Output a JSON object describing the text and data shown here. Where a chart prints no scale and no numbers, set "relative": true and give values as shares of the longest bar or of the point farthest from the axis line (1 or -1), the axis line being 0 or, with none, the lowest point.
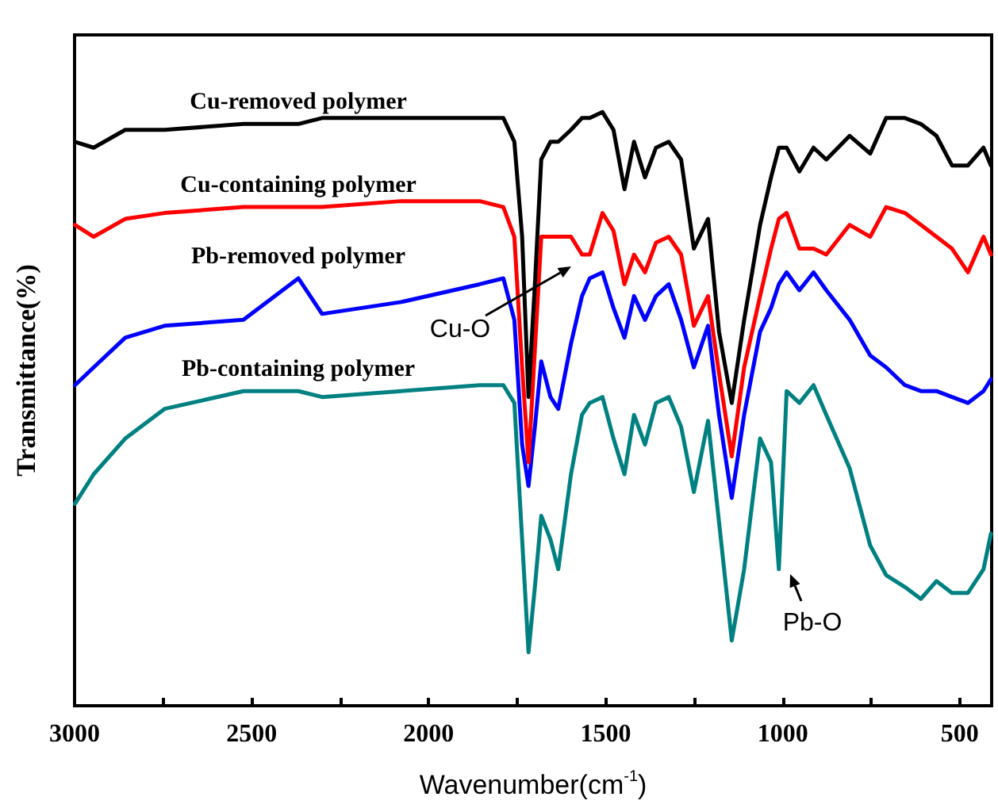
{
  "chart_data": {
    "type": "line",
    "relative": true,
    "xlabel": "Wavenumber(cm$^{-1}$)",
    "ylabel": "Transmittance(%)",
    "x": [
      2999,
      2946,
      2857,
      2746,
      2523,
      2368,
      2301,
      2078,
      1856,
      1789,
      1758,
      1736,
      1718,
      1700,
      1682,
      1656,
      1634,
      1598,
      1567,
      1545,
      1509,
      1478,
      1447,
      1420,
      1389,
      1358,
      1322,
      1287,
      1251,
      1211,
      1180,
      1144,
      1109,
      1064,
      1033,
      1011,
      989,
      953,
      913,
      877,
      811,
      753,
      708,
      655,
      610,
      566,
      522,
      477,
      433,
      412
    ],
    "xlim": [
      3000,
      410
    ],
    "xticks": [
      3000,
      {
        "value": 2750,
        "label": null
      },
      2500,
      {
        "value": 2250,
        "label": null
      },
      2000,
      {
        "value": 1750,
        "label": null
      },
      1500,
      {
        "value": 1250,
        "label": null
      },
      1000,
      {
        "value": 750,
        "label": null
      },
      500
    ],
    "series": [
      {
        "name": "Cu-removed polymer",
        "color": "#000000",
        "values": [
          0.95,
          0.94,
          0.97,
          0.97,
          0.98,
          0.98,
          0.99,
          0.99,
          0.99,
          0.99,
          0.95,
          0.79,
          0.52,
          0.71,
          0.92,
          0.95,
          0.95,
          0.97,
          0.99,
          0.99,
          1.0,
          0.97,
          0.87,
          0.95,
          0.89,
          0.94,
          0.95,
          0.92,
          0.77,
          0.82,
          0.63,
          0.51,
          0.65,
          0.81,
          0.89,
          0.94,
          0.94,
          0.9,
          0.94,
          0.92,
          0.96,
          0.93,
          0.99,
          0.99,
          0.98,
          0.96,
          0.91,
          0.91,
          0.94,
          0.91
        ]
      },
      {
        "name": "Cu-containing polymer",
        "color": "#ff0000",
        "values": [
          0.81,
          0.79,
          0.82,
          0.83,
          0.84,
          0.84,
          0.84,
          0.85,
          0.85,
          0.84,
          0.79,
          0.57,
          0.41,
          0.6,
          0.79,
          0.79,
          0.79,
          0.79,
          0.76,
          0.76,
          0.83,
          0.8,
          0.71,
          0.76,
          0.73,
          0.78,
          0.79,
          0.76,
          0.64,
          0.69,
          0.56,
          0.42,
          0.57,
          0.69,
          0.77,
          0.82,
          0.83,
          0.77,
          0.77,
          0.76,
          0.81,
          0.79,
          0.84,
          0.83,
          0.81,
          0.79,
          0.77,
          0.73,
          0.79,
          0.76
        ]
      },
      {
        "name": "Pb-removed polymer",
        "color": "#0000ff",
        "values": [
          0.54,
          0.57,
          0.62,
          0.64,
          0.65,
          0.72,
          0.66,
          0.68,
          0.71,
          0.72,
          0.65,
          0.44,
          0.37,
          0.47,
          0.58,
          0.52,
          0.5,
          0.61,
          0.69,
          0.72,
          0.73,
          0.67,
          0.62,
          0.69,
          0.65,
          0.69,
          0.71,
          0.65,
          0.57,
          0.64,
          0.49,
          0.35,
          0.49,
          0.63,
          0.67,
          0.71,
          0.73,
          0.7,
          0.73,
          0.7,
          0.65,
          0.59,
          0.57,
          0.54,
          0.53,
          0.53,
          0.52,
          0.51,
          0.53,
          0.55
        ]
      },
      {
        "name": "Pb-containing polymer",
        "color": "#008080",
        "values": [
          0.34,
          0.39,
          0.45,
          0.5,
          0.53,
          0.53,
          0.52,
          0.53,
          0.54,
          0.54,
          0.51,
          0.28,
          0.09,
          0.2,
          0.32,
          0.28,
          0.23,
          0.39,
          0.49,
          0.51,
          0.52,
          0.45,
          0.39,
          0.49,
          0.44,
          0.51,
          0.52,
          0.47,
          0.36,
          0.48,
          0.31,
          0.11,
          0.23,
          0.45,
          0.41,
          0.23,
          0.53,
          0.51,
          0.54,
          0.49,
          0.4,
          0.27,
          0.22,
          0.2,
          0.18,
          0.21,
          0.19,
          0.19,
          0.23,
          0.29
        ]
      }
    ],
    "annotations": [
      "Cu-O",
      "Pb-O"
    ],
    "legend": false,
    "grid": false,
    "marker": "none",
    "line_style": "solid"
  }
}
